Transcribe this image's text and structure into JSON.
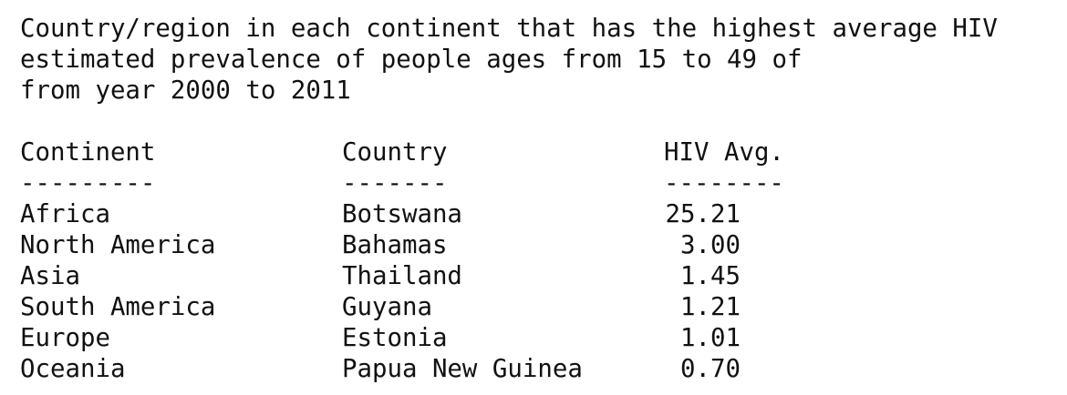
{
  "title": {
    "lines": [
      "Country/region in each continent that has the highest average HIV",
      "estimated prevalence of people ages from 15 to 49 of",
      "from year 2000 to 2011"
    ]
  },
  "table": {
    "headers": [
      "Continent",
      "Country",
      "HIV Avg."
    ],
    "separators": [
      "---------",
      "-------",
      "--------"
    ],
    "rows": [
      [
        "Africa",
        "Botswana",
        "25.21"
      ],
      [
        "North America",
        "Bahamas",
        "3.00"
      ],
      [
        "Asia",
        "Thailand",
        "1.45"
      ],
      [
        "South America",
        "Guyana",
        "1.21"
      ],
      [
        "Europe",
        "Estonia",
        "1.01"
      ],
      [
        "Oceania",
        "Papua New Guinea",
        "0.70"
      ]
    ]
  }
}
